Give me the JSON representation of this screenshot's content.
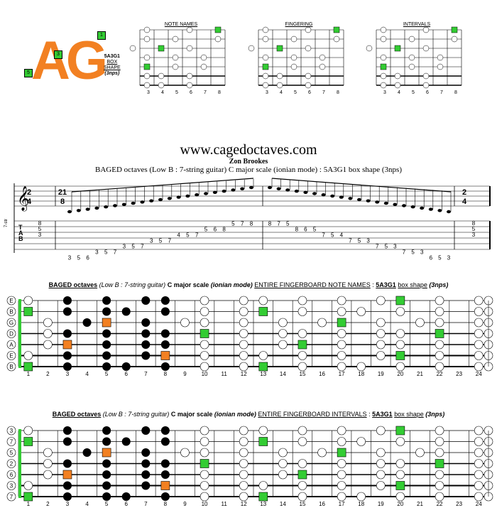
{
  "logo": {
    "text": "AG",
    "code": "5A3G1",
    "line2": "BOX",
    "line3": "SHAPE",
    "line4": "(3nps)",
    "sq_top": "1",
    "sq_mid": "3",
    "sq_low": "5"
  },
  "mini": {
    "titles": [
      "NOTE NAMES",
      "FINGERING",
      "INTERVALS"
    ],
    "frets": [
      "3",
      "4",
      "5",
      "6",
      "7",
      "8"
    ]
  },
  "site": "www.cagedoctaves.com",
  "author": "Zon Brookes",
  "subtitle": "BAGED octaves (Low B : 7-string guitar) C major scale (ionian mode) : 5A3G1 box shape (3nps)",
  "tab": {
    "time_start": [
      "2",
      "4"
    ],
    "time_mid": [
      "21",
      "8"
    ],
    "time_end": [
      "2",
      "4"
    ],
    "clef_label": "7-str",
    "tab_letters": [
      "T",
      "A",
      "B"
    ],
    "chord_start": [
      "8",
      "5",
      "3"
    ],
    "chord_end": [
      "8",
      "5",
      "3"
    ],
    "run_up": [
      "3",
      "5",
      "6",
      "3",
      "5",
      "7",
      "3",
      "5",
      "7",
      "3",
      "5",
      "7",
      "4",
      "5",
      "7",
      "5",
      "6",
      "8",
      "5",
      "7",
      "8"
    ],
    "run_down": [
      "8",
      "7",
      "5",
      "8",
      "6",
      "5",
      "7",
      "5",
      "4",
      "7",
      "5",
      "3",
      "7",
      "5",
      "3",
      "7",
      "5",
      "3",
      "6",
      "5",
      "3"
    ]
  },
  "diagram1": {
    "title_a": "BAGED octaves",
    "title_b": "(Low B : 7-string guitar)",
    "title_c": "C major scale",
    "title_d": "(ionian mode)",
    "title_e": "ENTIRE FINGERBOARD  NOTE NAMES",
    "title_f": "5A3G1",
    "title_g": "box shape",
    "title_h": "(3nps)"
  },
  "diagram2": {
    "title_a": "BAGED octaves",
    "title_b": "(Low B : 7-string guitar)",
    "title_c": "C major scale",
    "title_d": "(ionian mode)",
    "title_e": "ENTIRE FINGERBOARD  INTERVALS",
    "title_f": "5A3G1",
    "title_g": "box shape",
    "title_h": "(3nps)"
  },
  "fret_numbers": [
    "1",
    "2",
    "3",
    "4",
    "5",
    "6",
    "7",
    "8",
    "9",
    "10",
    "11",
    "12",
    "13",
    "14",
    "15",
    "16",
    "17",
    "18",
    "19",
    "20",
    "21",
    "22",
    "23",
    "24"
  ],
  "strings_notes": [
    "E",
    "B",
    "G",
    "D",
    "A",
    "E",
    "B"
  ],
  "strings_intervals": [
    "3",
    "7",
    "5",
    "2",
    "6",
    "3",
    "7"
  ],
  "colors": {
    "orange": "#f28022",
    "green": "#33cc33",
    "black": "#000000"
  }
}
